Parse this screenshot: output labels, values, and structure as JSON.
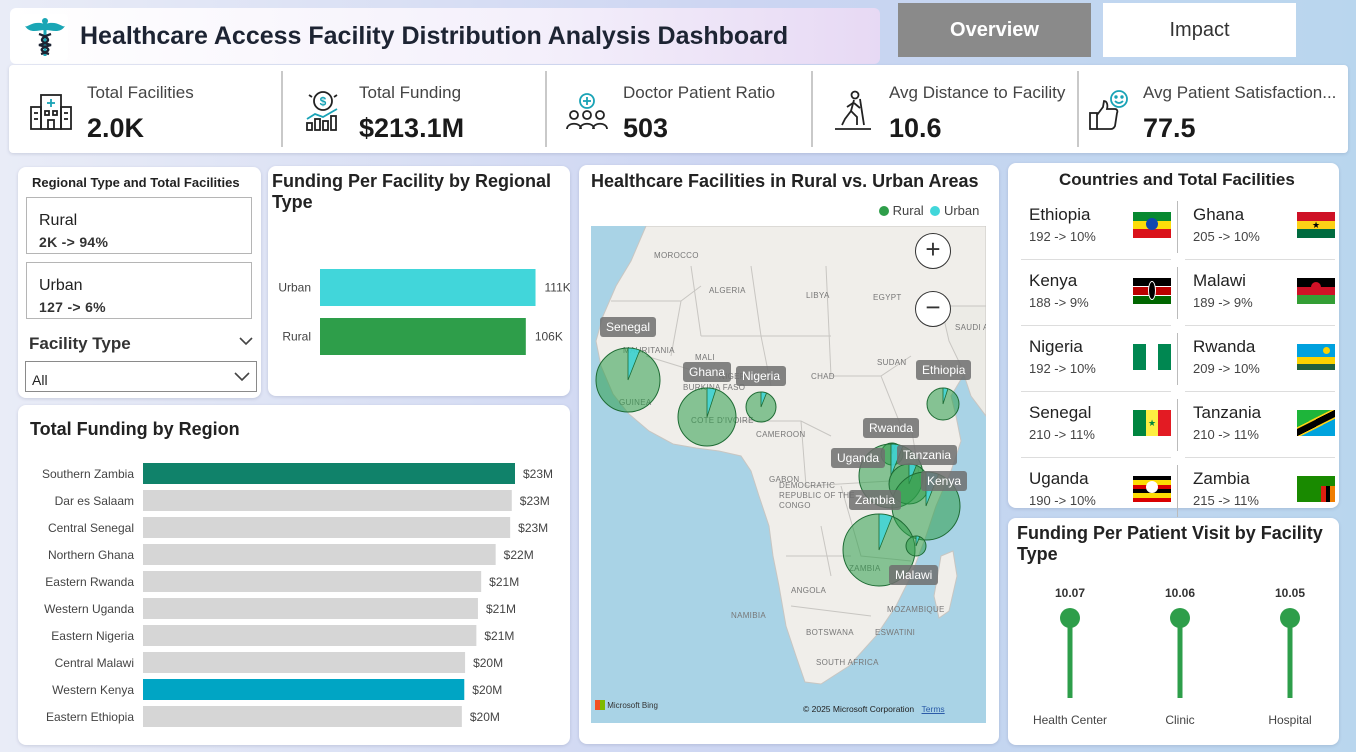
{
  "header": {
    "title": "Healthcare Access Facility Distribution Analysis Dashboard",
    "nav": [
      {
        "label": "Overview",
        "active": true
      },
      {
        "label": "Impact",
        "active": false
      }
    ]
  },
  "kpis": [
    {
      "label": "Total Facilities",
      "value": "2.0K",
      "icon": "hospital-building-icon"
    },
    {
      "label": "Total Funding",
      "value": "$213.1M",
      "icon": "funding-coin-icon"
    },
    {
      "label": "Doctor Patient Ratio",
      "value": "503",
      "icon": "doctor-patients-icon"
    },
    {
      "label": "Avg Distance to Facility",
      "value": "10.6",
      "icon": "walking-person-icon"
    },
    {
      "label": "Avg Patient Satisfaction...",
      "value": "77.5",
      "icon": "thumbs-up-smile-icon"
    }
  ],
  "slicer": {
    "title": "Regional Type and Total Facilities",
    "regions": [
      {
        "name": "Rural",
        "value": "2K -> 94%"
      },
      {
        "name": "Urban",
        "value": "127 -> 6%"
      }
    ],
    "facility_type_label": "Facility Type",
    "facility_type_value": "All"
  },
  "funding_per_facility": {
    "title_line1": "Funding Per Facility by Regional",
    "title_line2": "Type",
    "chart_data": {
      "type": "bar",
      "orientation": "horizontal",
      "categories": [
        "Urban",
        "Rural"
      ],
      "values": [
        111,
        106
      ],
      "value_labels": [
        "111K",
        "106K"
      ],
      "unit": "K",
      "colors": [
        "#41d6da",
        "#2e9e4a"
      ],
      "xlim": [
        0,
        120
      ]
    }
  },
  "funding_by_region": {
    "title": "Total Funding by Region",
    "chart_data": {
      "type": "bar",
      "orientation": "horizontal",
      "categories": [
        "Southern Zambia",
        "Dar es Salaam",
        "Central Senegal",
        "Northern Ghana",
        "Eastern Rwanda",
        "Western Uganda",
        "Eastern Nigeria",
        "Central Malawi",
        "Western Kenya",
        "Eastern Ethiopia"
      ],
      "values": [
        23.1,
        22.9,
        22.8,
        21.9,
        21.0,
        20.8,
        20.7,
        20.0,
        19.95,
        19.8
      ],
      "value_labels": [
        "$23M",
        "$23M",
        "$23M",
        "$22M",
        "$21M",
        "$21M",
        "$21M",
        "$20M",
        "$20M",
        "$20M"
      ],
      "highlight": {
        "Southern Zambia": "#10826a",
        "Western Kenya": "#00a5c4"
      },
      "default_color": "#d6d6d6",
      "xlim": [
        0,
        23.1
      ]
    }
  },
  "map": {
    "title": "Healthcare Facilities in Rural vs. Urban Areas",
    "legend": [
      {
        "name": "Rural",
        "color": "#2e9e4a"
      },
      {
        "name": "Urban",
        "color": "#41d6da"
      }
    ],
    "geo_labels": [
      "MOROCCO",
      "ALGERIA",
      "LIBYA",
      "EGYPT",
      "SAUDI A",
      "MAURITANIA",
      "MALI",
      "BURKINA FASO",
      "CHAD",
      "SUDAN",
      "CAMEROON",
      "GABON",
      "DEMOCRATIC REPUBLIC OF THE CONGO",
      "ANGOLA",
      "NAMIBIA",
      "BOTSWANA",
      "MOZAMBIQUE",
      "ESWATINI",
      "SOUTH AFRICA",
      "GUINEA",
      "COTE D'IVOIRE",
      "NIGER",
      "ZAMBIA"
    ],
    "bubble_labels": [
      "Senegal",
      "Ghana",
      "Nigeria",
      "Ethiopia",
      "Rwanda",
      "Uganda",
      "Tanzania",
      "Kenya",
      "Zambia",
      "Malawi"
    ],
    "zoom_in": "+",
    "zoom_out": "−",
    "bing_label": "Microsoft Bing",
    "copyright": "© 2025 Microsoft Corporation",
    "terms": "Terms"
  },
  "countries": {
    "title": "Countries and Total Facilities",
    "items": [
      {
        "name": "Ethiopia",
        "value": "192 -> 10%",
        "flag": "ethiopia-flag-icon"
      },
      {
        "name": "Ghana",
        "value": "205 -> 10%",
        "flag": "ghana-flag-icon"
      },
      {
        "name": "Kenya",
        "value": "188 -> 9%",
        "flag": "kenya-flag-icon"
      },
      {
        "name": "Malawi",
        "value": "189 -> 9%",
        "flag": "malawi-flag-icon"
      },
      {
        "name": "Nigeria",
        "value": "192 -> 10%",
        "flag": "nigeria-flag-icon"
      },
      {
        "name": "Rwanda",
        "value": "209 -> 10%",
        "flag": "rwanda-flag-icon"
      },
      {
        "name": "Senegal",
        "value": "210 -> 11%",
        "flag": "senegal-flag-icon"
      },
      {
        "name": "Tanzania",
        "value": "210 -> 11%",
        "flag": "tanzania-flag-icon"
      },
      {
        "name": "Uganda",
        "value": "190 -> 10%",
        "flag": "uganda-flag-icon"
      },
      {
        "name": "Zambia",
        "value": "215 -> 11%",
        "flag": "zambia-flag-icon"
      }
    ]
  },
  "funding_per_visit": {
    "title_line1": "Funding Per Patient Visit by Facility",
    "title_line2": "Type",
    "chart_data": {
      "type": "lollipop",
      "categories": [
        "Health Center",
        "Clinic",
        "Hospital"
      ],
      "values": [
        10.07,
        10.06,
        10.05
      ],
      "value_labels": [
        "10.07",
        "10.06",
        "10.05"
      ],
      "color": "#2e9e4a"
    }
  }
}
